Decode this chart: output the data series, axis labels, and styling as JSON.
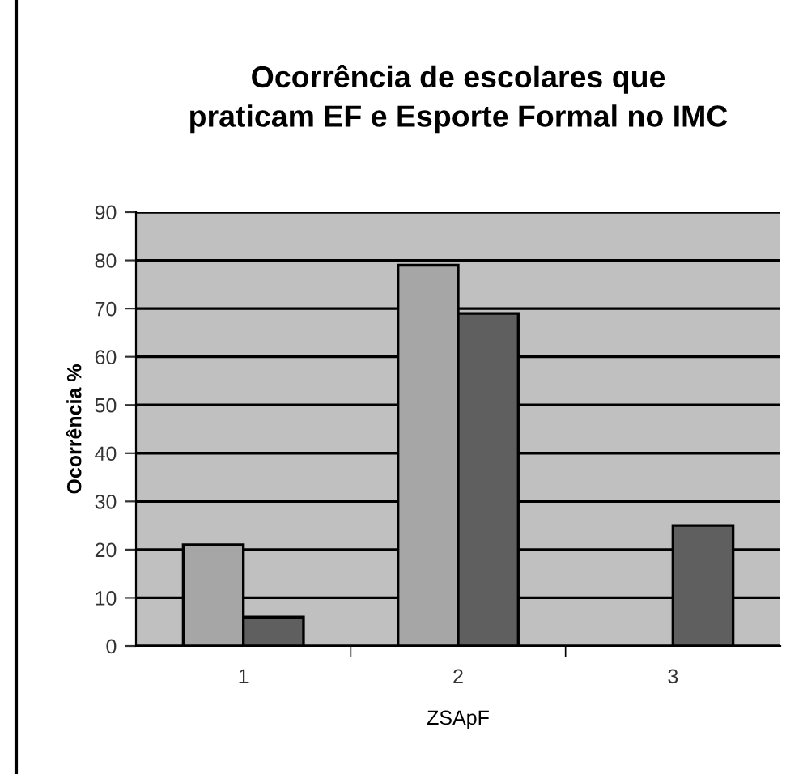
{
  "chart_data": {
    "type": "bar",
    "title": "Ocorrência de escolares que\npraticam EF e Esporte Formal no IMC",
    "xlabel": "ZSApF",
    "ylabel": "Ocorrência %",
    "categories": [
      "1",
      "2",
      "3"
    ],
    "series": [
      {
        "color": "#a6a6a6",
        "values": [
          21,
          79,
          null
        ]
      },
      {
        "color": "#5f5f5f",
        "values": [
          6,
          69,
          25
        ]
      }
    ],
    "ylim": [
      0,
      90
    ],
    "yticks": [
      0,
      10,
      20,
      30,
      40,
      50,
      60,
      70,
      80,
      90
    ],
    "grid": "y",
    "legend": false
  }
}
